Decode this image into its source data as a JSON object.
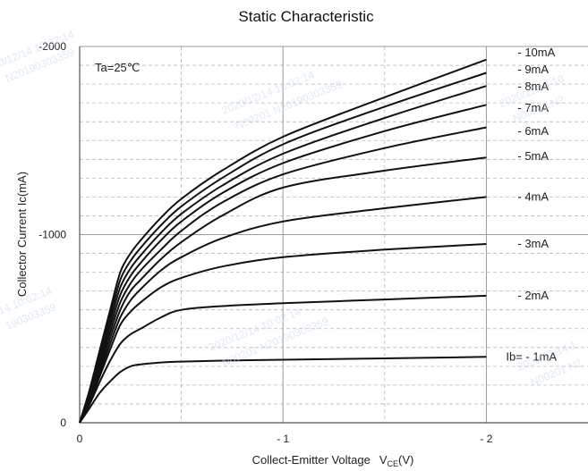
{
  "chart_data": {
    "type": "line",
    "title": "Static Characteristic",
    "xlabel": "Collect-Emitter Voltage",
    "xlabel_sym": "V",
    "xlabel_sub": "CE",
    "xlabel_unit": "(V)",
    "ylabel": "Collector  Current   Ic(mA)",
    "annotation": "Ta=25℃",
    "xlim": [
      0,
      -2.5
    ],
    "ylim": [
      0,
      -2000
    ],
    "x_ticks": [
      {
        "value": 0,
        "label": "0"
      },
      {
        "value": -1,
        "label": "- 1"
      },
      {
        "value": -2,
        "label": "- 2"
      }
    ],
    "y_ticks": [
      {
        "value": 0,
        "label": "0"
      },
      {
        "value": -1000,
        "label": "-1000"
      },
      {
        "value": -2000,
        "label": "-2000"
      }
    ],
    "grid": "major solid, minor dashed",
    "series": [
      {
        "name": "Ib= - 1mA",
        "x": [
          0,
          -0.05,
          -0.1,
          -0.15,
          -0.2,
          -0.25,
          -0.3,
          -0.4,
          -0.5,
          -0.7,
          -1.0,
          -1.5,
          -2.0
        ],
        "y": [
          0,
          -80,
          -160,
          -220,
          -270,
          -300,
          -310,
          -320,
          -325,
          -330,
          -335,
          -342,
          -350
        ]
      },
      {
        "name": "- 2mA",
        "x": [
          0,
          -0.05,
          -0.1,
          -0.15,
          -0.2,
          -0.25,
          -0.3,
          -0.4,
          -0.5,
          -0.7,
          -1.0,
          -1.5,
          -2.0
        ],
        "y": [
          0,
          -100,
          -220,
          -330,
          -420,
          -470,
          -500,
          -560,
          -600,
          -620,
          -635,
          -655,
          -675
        ]
      },
      {
        "name": "- 3mA",
        "x": [
          0,
          -0.05,
          -0.1,
          -0.15,
          -0.2,
          -0.25,
          -0.3,
          -0.4,
          -0.5,
          -0.7,
          -1.0,
          -1.5,
          -2.0
        ],
        "y": [
          0,
          -110,
          -250,
          -390,
          -520,
          -590,
          -640,
          -720,
          -770,
          -830,
          -880,
          -920,
          -950
        ]
      },
      {
        "name": "- 4mA",
        "x": [
          0,
          -0.05,
          -0.1,
          -0.15,
          -0.2,
          -0.25,
          -0.3,
          -0.4,
          -0.5,
          -0.7,
          -1.0,
          -1.5,
          -2.0
        ],
        "y": [
          0,
          -120,
          -270,
          -420,
          -560,
          -650,
          -710,
          -810,
          -880,
          -980,
          -1070,
          -1140,
          -1200
        ]
      },
      {
        "name": "- 5mA",
        "x": [
          0,
          -0.05,
          -0.1,
          -0.15,
          -0.2,
          -0.25,
          -0.3,
          -0.4,
          -0.5,
          -0.7,
          -1.0,
          -1.5,
          -2.0
        ],
        "y": [
          0,
          -130,
          -290,
          -450,
          -600,
          -700,
          -760,
          -870,
          -960,
          -1100,
          -1250,
          -1340,
          -1410
        ]
      },
      {
        "name": "- 6mA",
        "x": [
          0,
          -0.05,
          -0.1,
          -0.15,
          -0.2,
          -0.25,
          -0.3,
          -0.4,
          -0.5,
          -0.7,
          -1.0,
          -1.5,
          -2.0
        ],
        "y": [
          0,
          -140,
          -310,
          -480,
          -640,
          -740,
          -810,
          -920,
          -1020,
          -1170,
          -1320,
          -1460,
          -1570
        ]
      },
      {
        "name": "- 7mA",
        "x": [
          0,
          -0.05,
          -0.1,
          -0.15,
          -0.2,
          -0.25,
          -0.3,
          -0.4,
          -0.5,
          -0.7,
          -1.0,
          -1.5,
          -2.0
        ],
        "y": [
          0,
          -150,
          -330,
          -510,
          -680,
          -780,
          -850,
          -970,
          -1070,
          -1220,
          -1380,
          -1550,
          -1690
        ]
      },
      {
        "name": "- 8mA",
        "x": [
          0,
          -0.05,
          -0.1,
          -0.15,
          -0.2,
          -0.25,
          -0.3,
          -0.4,
          -0.5,
          -0.7,
          -1.0,
          -1.5,
          -2.0
        ],
        "y": [
          0,
          -160,
          -350,
          -540,
          -720,
          -820,
          -890,
          -1010,
          -1110,
          -1260,
          -1430,
          -1620,
          -1790
        ]
      },
      {
        "name": "- 9mA",
        "x": [
          0,
          -0.05,
          -0.1,
          -0.15,
          -0.2,
          -0.25,
          -0.3,
          -0.4,
          -0.5,
          -0.7,
          -1.0,
          -1.5,
          -2.0
        ],
        "y": [
          0,
          -170,
          -370,
          -570,
          -760,
          -860,
          -930,
          -1050,
          -1150,
          -1300,
          -1480,
          -1680,
          -1860
        ]
      },
      {
        "name": "- 10mA",
        "x": [
          0,
          -0.05,
          -0.1,
          -0.15,
          -0.2,
          -0.25,
          -0.3,
          -0.4,
          -0.5,
          -0.7,
          -1.0,
          -1.5,
          -2.0
        ],
        "y": [
          0,
          -180,
          -390,
          -600,
          -800,
          -900,
          -970,
          -1090,
          -1190,
          -1340,
          -1520,
          -1730,
          -1930
        ]
      }
    ],
    "colors": {
      "line": "#111111",
      "major_grid": "#9a9a9a",
      "minor_grid": "#b8b8b8",
      "axis": "#555555"
    }
  }
}
